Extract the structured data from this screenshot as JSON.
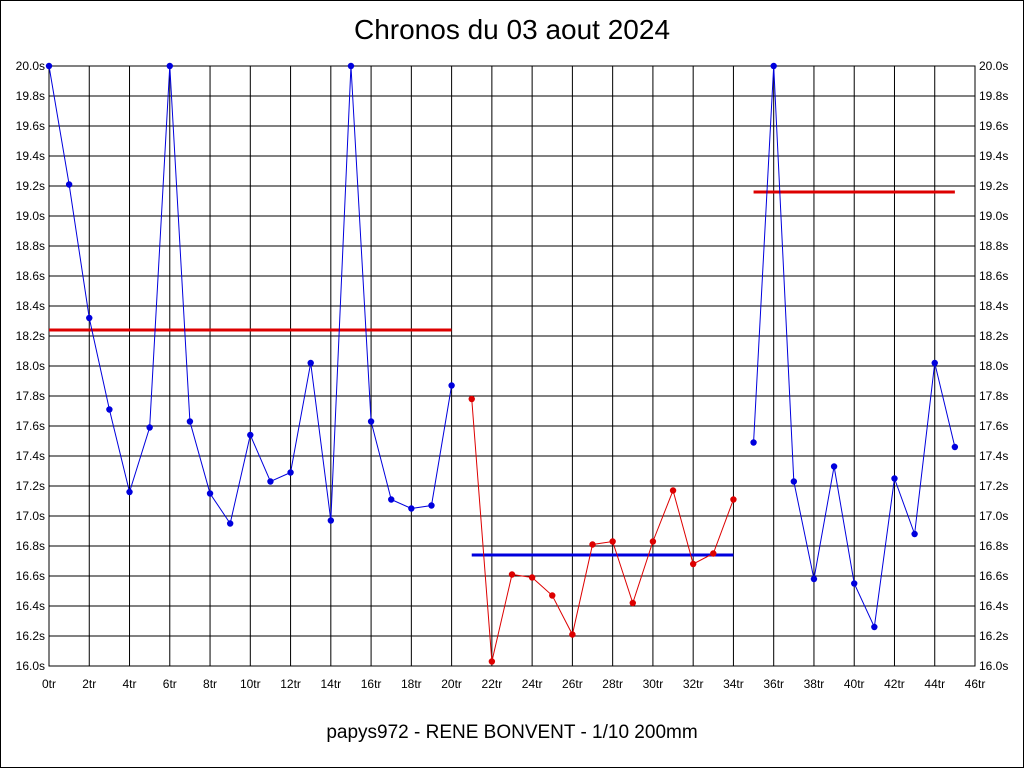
{
  "chart_data": {
    "type": "line",
    "title": "Chronos du 03 aout 2024",
    "caption": "papys972 - RENE BONVENT - 1/10 200mm",
    "xlim": [
      0,
      46
    ],
    "ylim": [
      16.0,
      20.0
    ],
    "x_tick_labels": [
      "0tr",
      "2tr",
      "4tr",
      "6tr",
      "8tr",
      "10tr",
      "12tr",
      "14tr",
      "16tr",
      "18tr",
      "20tr",
      "22tr",
      "24tr",
      "26tr",
      "28tr",
      "30tr",
      "32tr",
      "34tr",
      "36tr",
      "38tr",
      "40tr",
      "42tr",
      "44tr",
      "46tr"
    ],
    "y_tick_labels": [
      "16.0s",
      "16.2s",
      "16.4s",
      "16.6s",
      "16.8s",
      "17.0s",
      "17.2s",
      "17.4s",
      "17.6s",
      "17.8s",
      "18.0s",
      "18.2s",
      "18.4s",
      "18.6s",
      "18.8s",
      "19.0s",
      "19.2s",
      "19.4s",
      "19.6s",
      "19.8s",
      "20.0s"
    ],
    "grid": true,
    "series": [
      {
        "color": "#0000dd",
        "x": [
          0,
          1,
          2,
          3,
          4,
          5,
          6,
          7,
          8,
          9,
          10,
          11,
          12,
          13,
          14,
          15,
          16,
          17,
          18,
          19,
          20
        ],
        "y": [
          20.0,
          19.21,
          18.32,
          17.71,
          17.16,
          17.59,
          20.0,
          17.63,
          17.15,
          16.95,
          17.54,
          17.23,
          17.29,
          18.02,
          16.97,
          20.0,
          17.63,
          17.11,
          17.05,
          17.07,
          17.87
        ]
      },
      {
        "color": "#dd0000",
        "x": [
          21,
          22,
          23,
          24,
          25,
          26,
          27,
          28,
          29,
          30,
          31,
          32,
          33,
          34
        ],
        "y": [
          17.78,
          16.03,
          16.61,
          16.59,
          16.47,
          16.21,
          16.81,
          16.83,
          16.42,
          16.83,
          17.17,
          16.68,
          16.75,
          17.11
        ]
      },
      {
        "color": "#0000dd",
        "x": [
          35,
          36,
          37,
          38,
          39,
          40,
          41,
          42,
          43,
          44,
          45
        ],
        "y": [
          17.49,
          20.0,
          17.23,
          16.58,
          17.33,
          16.55,
          16.26,
          17.25,
          16.88,
          18.02,
          17.46
        ]
      }
    ],
    "averages": [
      {
        "color": "#dd0000",
        "x_start": 0,
        "x_end": 20,
        "y": 18.24
      },
      {
        "color": "#0000dd",
        "x_start": 21,
        "x_end": 34,
        "y": 16.74
      },
      {
        "color": "#dd0000",
        "x_start": 35,
        "x_end": 45,
        "y": 19.16
      }
    ]
  }
}
